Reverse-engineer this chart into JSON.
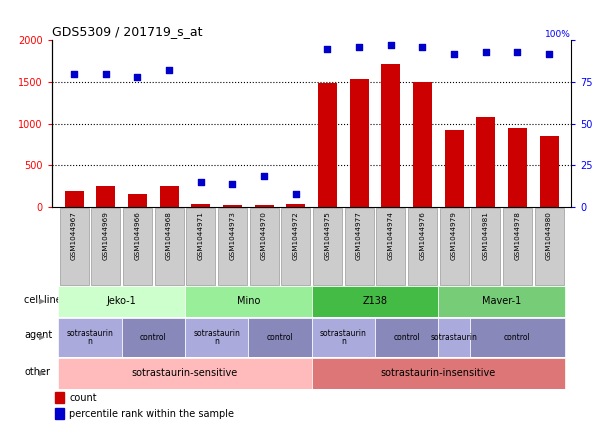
{
  "title": "GDS5309 / 201719_s_at",
  "samples": [
    "GSM1044967",
    "GSM1044969",
    "GSM1044966",
    "GSM1044968",
    "GSM1044971",
    "GSM1044973",
    "GSM1044970",
    "GSM1044972",
    "GSM1044975",
    "GSM1044977",
    "GSM1044974",
    "GSM1044976",
    "GSM1044979",
    "GSM1044981",
    "GSM1044978",
    "GSM1044980"
  ],
  "counts": [
    200,
    255,
    160,
    250,
    40,
    25,
    30,
    35,
    1490,
    1530,
    1710,
    1500,
    920,
    1085,
    950,
    855
  ],
  "percentiles": [
    80,
    80,
    78,
    82,
    15,
    14,
    19,
    8,
    95,
    96,
    97,
    96,
    92,
    93,
    93,
    92
  ],
  "cell_line_groups": [
    {
      "label": "Jeko-1",
      "start": 0,
      "end": 3,
      "color": "#ccffcc"
    },
    {
      "label": "Mino",
      "start": 4,
      "end": 7,
      "color": "#99ee99"
    },
    {
      "label": "Z138",
      "start": 8,
      "end": 11,
      "color": "#44bb44"
    },
    {
      "label": "Maver-1",
      "start": 12,
      "end": 15,
      "color": "#77cc77"
    }
  ],
  "agent_groups": [
    {
      "label": "sotrastaurin\nn",
      "start": 0,
      "end": 1,
      "color": "#aaaadd"
    },
    {
      "label": "control",
      "start": 2,
      "end": 3,
      "color": "#8888bb"
    },
    {
      "label": "sotrastaurin\nn",
      "start": 4,
      "end": 5,
      "color": "#aaaadd"
    },
    {
      "label": "control",
      "start": 6,
      "end": 7,
      "color": "#8888bb"
    },
    {
      "label": "sotrastaurin\nn",
      "start": 8,
      "end": 9,
      "color": "#aaaadd"
    },
    {
      "label": "control",
      "start": 10,
      "end": 11,
      "color": "#8888bb"
    },
    {
      "label": "sotrastaurin",
      "start": 12,
      "end": 12,
      "color": "#aaaadd"
    },
    {
      "label": "control",
      "start": 13,
      "end": 15,
      "color": "#8888bb"
    }
  ],
  "other_groups": [
    {
      "label": "sotrastaurin-sensitive",
      "start": 0,
      "end": 7,
      "color": "#ffbbbb"
    },
    {
      "label": "sotrastaurin-insensitive",
      "start": 8,
      "end": 15,
      "color": "#dd7777"
    }
  ],
  "bar_color": "#cc0000",
  "dot_color": "#0000cc",
  "dot_size": 15,
  "ylim_left": [
    0,
    2000
  ],
  "ylim_right": [
    0,
    100
  ],
  "yticks_left": [
    0,
    500,
    1000,
    1500,
    2000
  ],
  "yticks_right": [
    0,
    25,
    50,
    75,
    100
  ],
  "background_color": "#ffffff",
  "xticklabel_bg": "#cccccc",
  "xticklabel_fontsize": 5.5,
  "title_fontsize": 9
}
